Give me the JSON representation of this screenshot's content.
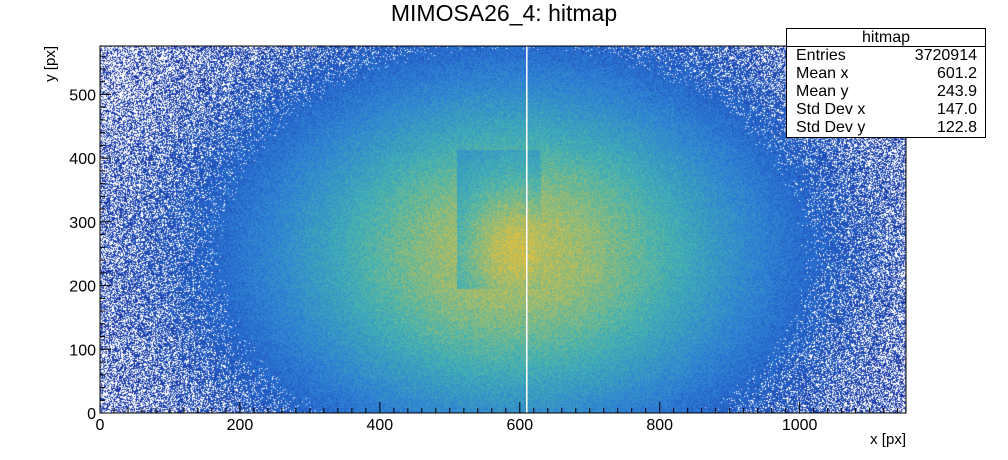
{
  "chart_data": {
    "type": "heatmap",
    "title": "MIMOSA26_4: hitmap",
    "xlabel": "x [px]",
    "ylabel": "y [px]",
    "xlim": [
      0,
      1152
    ],
    "ylim": [
      0,
      576
    ],
    "x_ticks": [
      0,
      200,
      400,
      600,
      800,
      1000
    ],
    "y_ticks": [
      0,
      100,
      200,
      300,
      400,
      500
    ],
    "beam_center": [
      590,
      250
    ],
    "beam_width": [
      270,
      210
    ],
    "hot_region": {
      "x": [
        510,
        630
      ],
      "y": [
        196,
        414
      ]
    },
    "dead_column_x": 610,
    "colors": {
      "low": "#1a2ea0",
      "mid": "#2b7ad8",
      "high": "#45b5b0",
      "peak": "#e8c03a"
    }
  },
  "stats": {
    "title": "hitmap",
    "rows": [
      {
        "label": "Entries",
        "value": "3720914"
      },
      {
        "label": "Mean x",
        "value": "601.2"
      },
      {
        "label": "Mean y",
        "value": "243.9"
      },
      {
        "label": "Std Dev x",
        "value": "147.0"
      },
      {
        "label": "Std Dev y",
        "value": "122.8"
      }
    ]
  }
}
